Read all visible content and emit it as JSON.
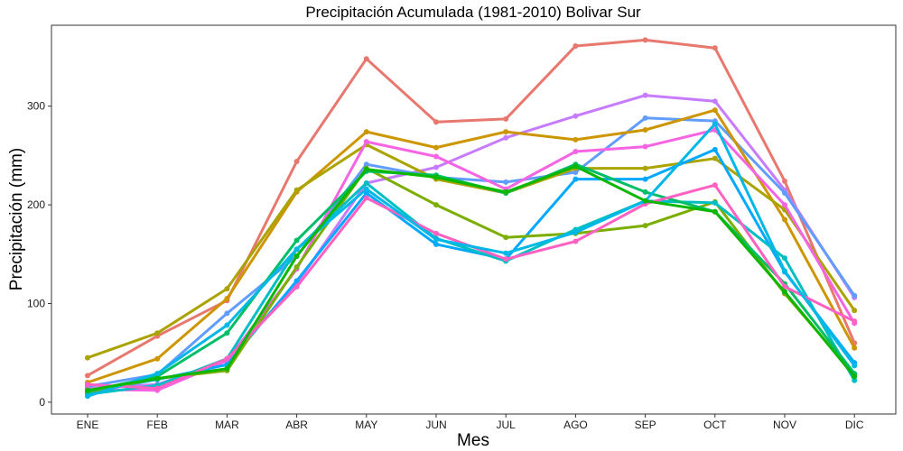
{
  "chart_data": {
    "type": "line",
    "title": "Precipitación Acumulada (1981-2010)  Bolivar Sur",
    "xlabel": "Mes",
    "ylabel": "Precipitación  (mm)",
    "categories": [
      "ENE",
      "FEB",
      "MAR",
      "ABR",
      "MAY",
      "JUN",
      "JUL",
      "AGO",
      "SEP",
      "OCT",
      "NOV",
      "DIC"
    ],
    "y_ticks": [
      0,
      100,
      200,
      300
    ],
    "ylim": [
      -12,
      382
    ],
    "grid": false,
    "legend": "none",
    "series": [
      {
        "color": "#E8776E",
        "values": [
          27,
          67,
          103,
          244,
          348,
          284,
          287,
          361,
          367,
          359,
          224,
          60
        ]
      },
      {
        "color": "#C77CFF",
        "values": [
          14,
          18,
          42,
          120,
          222,
          238,
          268,
          290,
          311,
          305,
          215,
          106
        ]
      },
      {
        "color": "#619CFF",
        "values": [
          16,
          28,
          90,
          148,
          241,
          228,
          223,
          233,
          288,
          285,
          212,
          108
        ]
      },
      {
        "color": "#CD9600",
        "values": [
          20,
          44,
          105,
          213,
          274,
          258,
          274,
          266,
          276,
          296,
          185,
          55
        ]
      },
      {
        "color": "#ABA300",
        "values": [
          45,
          70,
          115,
          215,
          261,
          226,
          212,
          237,
          237,
          247,
          195,
          93
        ]
      },
      {
        "color": "#F564E3",
        "values": [
          13,
          12,
          42,
          135,
          264,
          249,
          216,
          254,
          259,
          276,
          200,
          80
        ]
      },
      {
        "color": "#00A9FF",
        "values": [
          10,
          23,
          38,
          123,
          212,
          160,
          145,
          226,
          226,
          256,
          132,
          40
        ]
      },
      {
        "color": "#7CAE00",
        "values": [
          10,
          24,
          32,
          137,
          237,
          200,
          167,
          171,
          179,
          203,
          110,
          28
        ]
      },
      {
        "color": "#00BFC4",
        "values": [
          8,
          17,
          44,
          155,
          222,
          166,
          143,
          175,
          204,
          202,
          146,
          22
        ]
      },
      {
        "color": "#00BE67",
        "values": [
          11,
          26,
          70,
          164,
          234,
          230,
          212,
          241,
          213,
          193,
          120,
          29
        ]
      },
      {
        "color": "#FF61C3",
        "values": [
          18,
          14,
          44,
          117,
          207,
          171,
          145,
          163,
          201,
          220,
          117,
          82
        ]
      },
      {
        "color": "#00B8E7",
        "values": [
          6,
          29,
          78,
          155,
          216,
          165,
          151,
          172,
          204,
          282,
          133,
          37
        ]
      },
      {
        "color": "#0CB702",
        "values": [
          12,
          24,
          34,
          148,
          236,
          228,
          213,
          239,
          204,
          193,
          112,
          26
        ]
      }
    ]
  }
}
